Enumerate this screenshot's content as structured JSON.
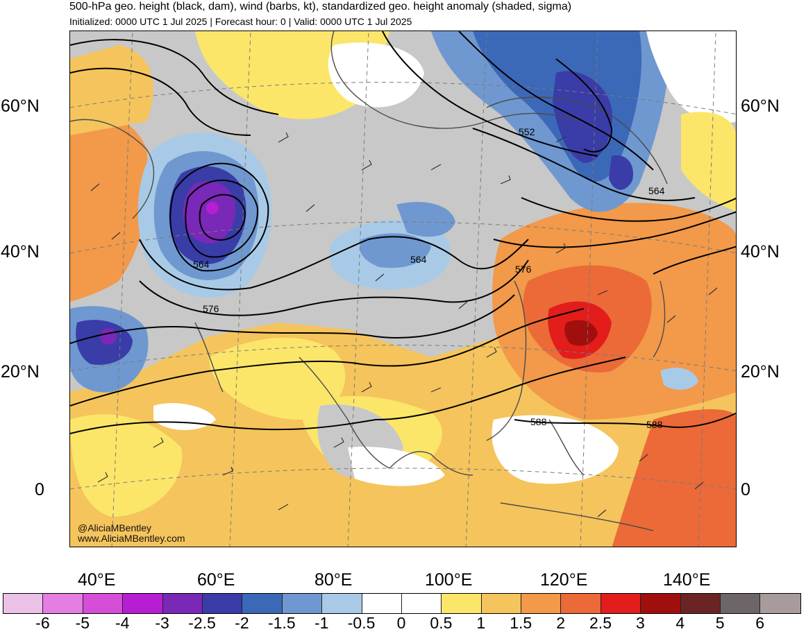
{
  "title": "500-hPa geo. height (black, dam), wind (barbs, kt), standardized geo. height anomaly (shaded, sigma)",
  "subtitle": "Initialized: 0000 UTC 1 Jul 2025 | Forecast hour: 0 | Valid: 0000 UTC 1 Jul 2025",
  "lat_labels": [
    "60°N",
    "40°N",
    "20°N",
    "0"
  ],
  "lon_labels": [
    "40°E",
    "60°E",
    "80°E",
    "100°E",
    "120°E",
    "140°E"
  ],
  "contour_labels": [
    "552",
    "564",
    "564",
    "564",
    "576",
    "576",
    "588",
    "588"
  ],
  "credit": {
    "handle": "@AliciaMBentley",
    "site": "www.AliciaMBentley.com"
  },
  "colorbar": {
    "colors": [
      "#ebc1e8",
      "#e47ee2",
      "#d64ed8",
      "#b71ed4",
      "#7a28b8",
      "#3a3ca8",
      "#3c68b8",
      "#6f98d0",
      "#a8cae6",
      "#ffffff",
      "#ffffff",
      "#fbe66a",
      "#f5c45c",
      "#f2994a",
      "#eb6a38",
      "#e21d1b",
      "#a10e0e",
      "#6a2424",
      "#6d6567",
      "#a89b9c"
    ],
    "labels": [
      "-6",
      "-5",
      "-4",
      "-3",
      "-2.5",
      "-2",
      "-1.5",
      "-1",
      "-0.5",
      "0",
      "0.5",
      "1",
      "1.5",
      "2",
      "2.5",
      "3",
      "4",
      "5",
      "6"
    ]
  },
  "colors": {
    "land_neutral": "#c8c8c8",
    "coast": "#4a4a4a",
    "contour": "#000000",
    "graticule": "#7a7a7a"
  }
}
